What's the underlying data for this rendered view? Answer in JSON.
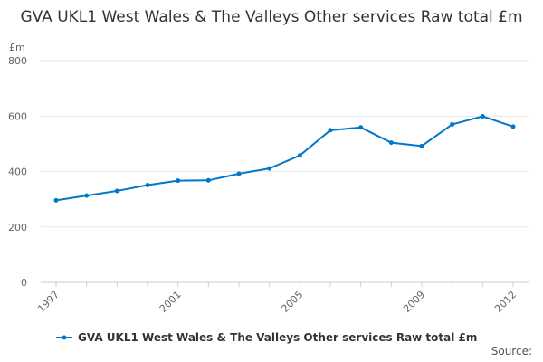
{
  "chart_data": {
    "type": "line",
    "title": "GVA UKL1 West Wales & The Valleys Other services Raw total £m",
    "ylabel": "£m",
    "xlabel": "",
    "ylim": [
      0,
      800
    ],
    "yticks": [
      0,
      200,
      400,
      600,
      800
    ],
    "xticks": [
      1997,
      2001,
      2005,
      2009,
      2012
    ],
    "grid": true,
    "legend": "bottom",
    "x": [
      1997,
      1998,
      1999,
      2000,
      2001,
      2002,
      2003,
      2004,
      2005,
      2006,
      2007,
      2008,
      2009,
      2010,
      2011,
      2012
    ],
    "series": [
      {
        "name": "GVA UKL1 West Wales & The Valleys Other services Raw total £m",
        "color": "#0077c8",
        "values": [
          296,
          313,
          330,
          351,
          367,
          368,
          392,
          411,
          458,
          549,
          559,
          504,
          492,
          570,
          599,
          562
        ]
      }
    ]
  },
  "source": "Source:"
}
